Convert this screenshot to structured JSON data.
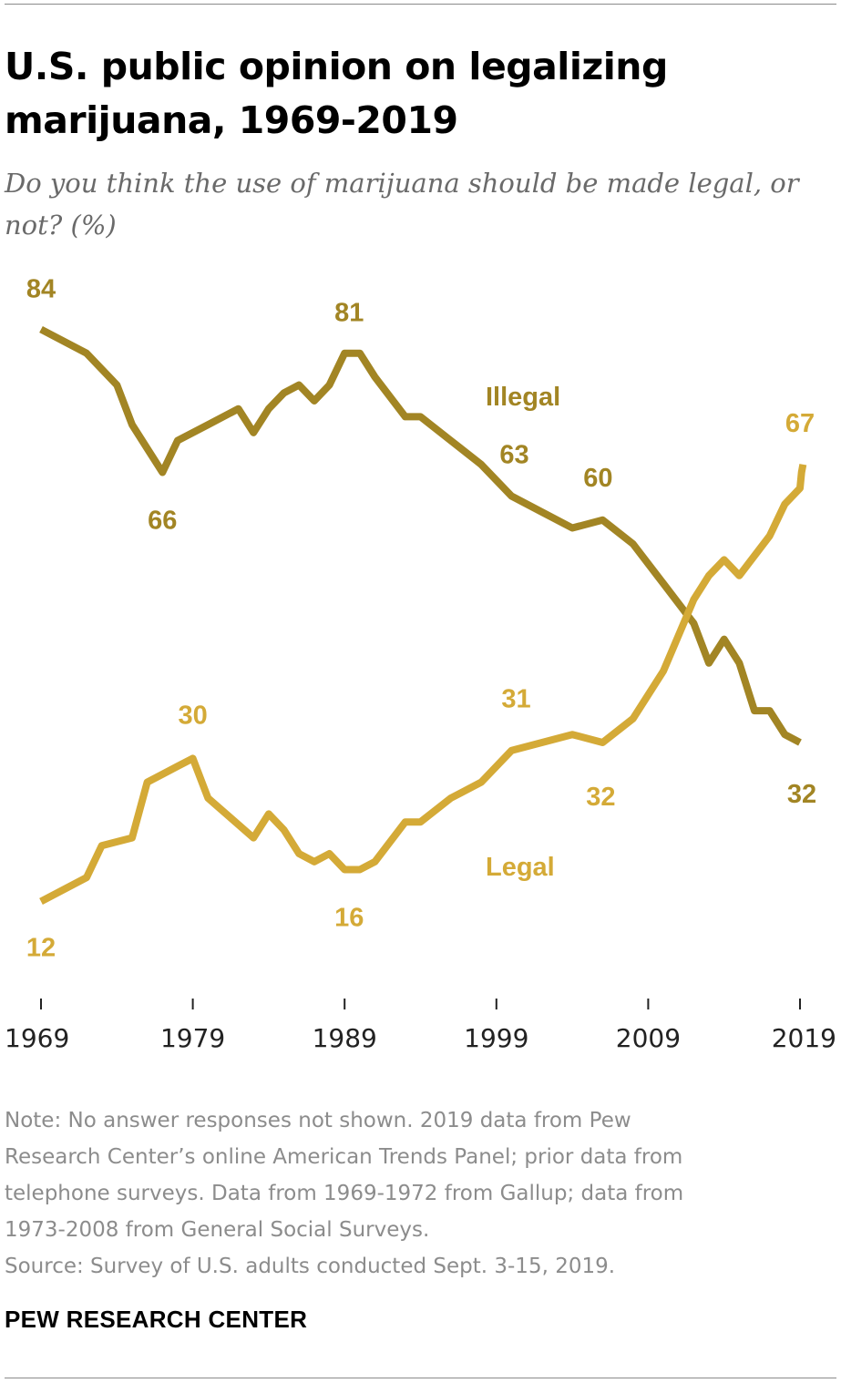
{
  "chart_data": {
    "type": "line",
    "title": "U.S. public opinion on legalizing marijuana, 1969-2019",
    "subtitle": "Do you think the use of marijuana should be made legal, or not? (%)",
    "x_ticks": [
      "1969",
      "1979",
      "1989",
      "1999",
      "2009",
      "2019"
    ],
    "xlim": [
      1969,
      2019
    ],
    "ylim": [
      0,
      100
    ],
    "grid": false,
    "legend": "inline labels",
    "series": [
      {
        "name": "Illegal",
        "color": "#a28524",
        "points": [
          [
            1969,
            84
          ],
          [
            1972,
            81
          ],
          [
            1973,
            79
          ],
          [
            1974,
            77
          ],
          [
            1975,
            72
          ],
          [
            1976,
            69
          ],
          [
            1977,
            66
          ],
          [
            1978,
            70
          ],
          [
            1980,
            72
          ],
          [
            1982,
            74
          ],
          [
            1983,
            71
          ],
          [
            1984,
            74
          ],
          [
            1985,
            76
          ],
          [
            1986,
            77
          ],
          [
            1987,
            75
          ],
          [
            1988,
            77
          ],
          [
            1989,
            81
          ],
          [
            1990,
            81
          ],
          [
            1991,
            78
          ],
          [
            1993,
            73
          ],
          [
            1994,
            73
          ],
          [
            1996,
            70
          ],
          [
            1998,
            67
          ],
          [
            2000,
            63
          ],
          [
            2002,
            61
          ],
          [
            2004,
            59
          ],
          [
            2006,
            60
          ],
          [
            2008,
            57
          ],
          [
            2010,
            52
          ],
          [
            2012,
            47
          ],
          [
            2013,
            42
          ],
          [
            2014,
            45
          ],
          [
            2015,
            42
          ],
          [
            2016,
            36
          ],
          [
            2017,
            36
          ],
          [
            2018,
            33
          ],
          [
            2019,
            32
          ]
        ]
      },
      {
        "name": "Legal",
        "color": "#d4aa37",
        "points": [
          [
            1969,
            12
          ],
          [
            1972,
            15
          ],
          [
            1973,
            19
          ],
          [
            1975,
            20
          ],
          [
            1976,
            27
          ],
          [
            1977,
            28
          ],
          [
            1978,
            29
          ],
          [
            1979,
            30
          ],
          [
            1980,
            25
          ],
          [
            1983,
            20
          ],
          [
            1984,
            23
          ],
          [
            1985,
            21
          ],
          [
            1986,
            18
          ],
          [
            1987,
            17
          ],
          [
            1988,
            18
          ],
          [
            1989,
            16
          ],
          [
            1990,
            16
          ],
          [
            1991,
            17
          ],
          [
            1993,
            22
          ],
          [
            1994,
            22
          ],
          [
            1996,
            25
          ],
          [
            1998,
            27
          ],
          [
            2000,
            31
          ],
          [
            2002,
            32
          ],
          [
            2004,
            33
          ],
          [
            2006,
            32
          ],
          [
            2008,
            35
          ],
          [
            2010,
            41
          ],
          [
            2012,
            50
          ],
          [
            2013,
            53
          ],
          [
            2014,
            55
          ],
          [
            2015,
            53
          ],
          [
            2017,
            58
          ],
          [
            2018,
            62
          ],
          [
            2019,
            64
          ],
          [
            2019.1,
            66
          ],
          [
            2019.2,
            67
          ]
        ]
      }
    ],
    "labels": {
      "illegal": [
        {
          "text": "84",
          "year": 1969,
          "value": 84
        },
        {
          "text": "66",
          "year": 1977,
          "value": 66
        },
        {
          "text": "81",
          "year": 1989,
          "value": 81
        },
        {
          "text": "63",
          "year": 2000,
          "value": 63
        },
        {
          "text": "60",
          "year": 2006,
          "value": 60
        },
        {
          "text": "32",
          "year": 2019,
          "value": 32
        }
      ],
      "legal": [
        {
          "text": "12",
          "year": 1969,
          "value": 12
        },
        {
          "text": "30",
          "year": 1979,
          "value": 30
        },
        {
          "text": "16",
          "year": 1989,
          "value": 16
        },
        {
          "text": "31",
          "year": 2000,
          "value": 31
        },
        {
          "text": "32",
          "year": 2006,
          "value": 32
        },
        {
          "text": "67",
          "year": 2019,
          "value": 67
        }
      ]
    },
    "series_labels": {
      "illegal": "Illegal",
      "legal": "Legal"
    }
  },
  "note": {
    "lines": [
      "Note: No answer responses not shown. 2019 data from Pew",
      "Research Center’s online American Trends Panel; prior data from",
      "telephone surveys. Data from 1969-1972 from Gallup; data from",
      "1973-2008 from General Social Surveys."
    ],
    "source": "Source: Survey of U.S. adults conducted Sept. 3-15, 2019."
  },
  "footer": "PEW RESEARCH CENTER"
}
